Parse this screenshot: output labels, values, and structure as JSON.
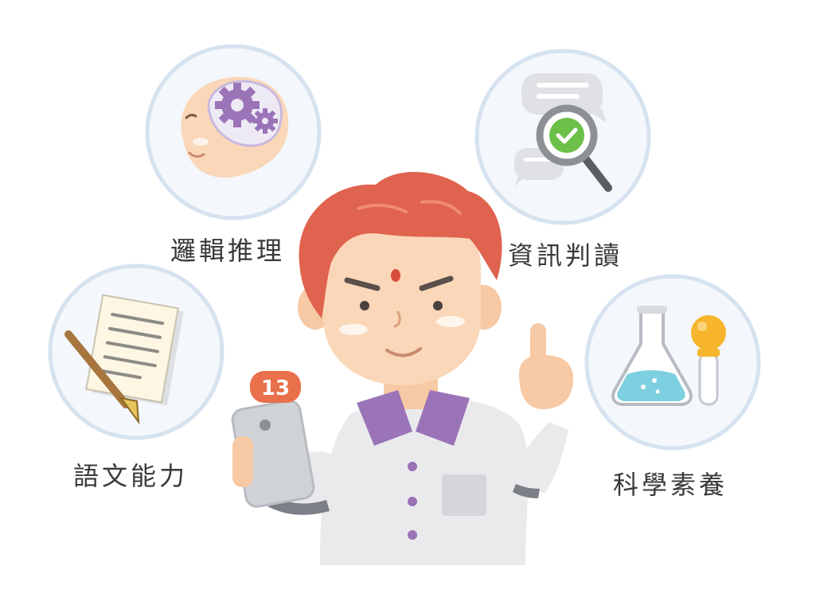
{
  "skills": {
    "logic": {
      "label": "邏輯推理",
      "icon": "brain-gears-icon"
    },
    "info": {
      "label": "資訊判讀",
      "icon": "magnifier-check-icon"
    },
    "language": {
      "label": "語文能力",
      "icon": "paper-pen-icon"
    },
    "science": {
      "label": "科學素養",
      "icon": "flask-dropper-icon"
    }
  },
  "phone": {
    "notification_count": "13"
  },
  "colors": {
    "circle_ring": "#d6e2f0",
    "circle_fill": "#f4f7fb",
    "hair": "#e0634f",
    "skin": "#fad7b8",
    "collar": "#9b74b8",
    "badge": "#e8704a",
    "gear": "#9b74b8",
    "check": "#6cc04a",
    "liquid": "#7dd0df",
    "bulb": "#f6b52c"
  }
}
